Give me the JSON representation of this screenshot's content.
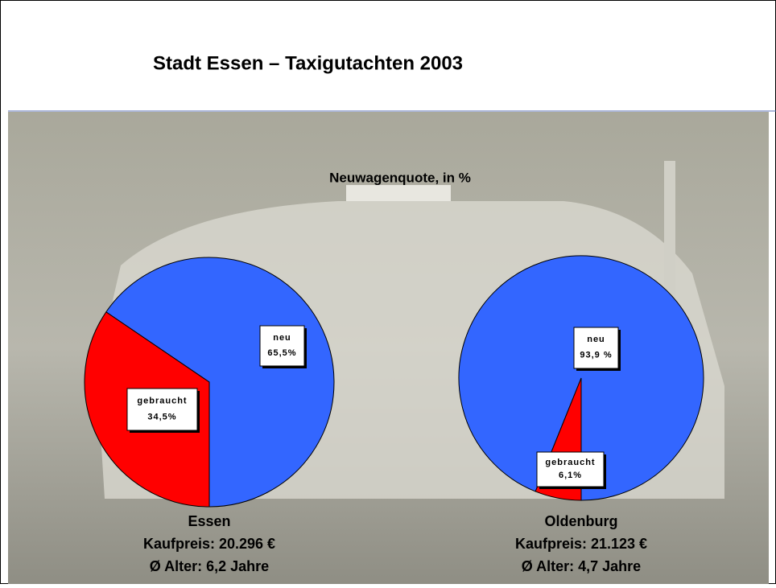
{
  "title": "Stadt Essen – Taxigutachten 2003",
  "subtitle": "Neuwagenquote, in %",
  "chart_data": [
    {
      "type": "pie",
      "title": "Essen",
      "notes": [
        "Kaufpreis: 20.296 €",
        "Ø Alter: 6,2 Jahre"
      ],
      "categories": [
        "neu",
        "gebraucht"
      ],
      "values": [
        65.5,
        34.5
      ],
      "value_labels": [
        "65,5%",
        "34,5%"
      ],
      "colors": [
        "#3366ff",
        "#ff0000"
      ]
    },
    {
      "type": "pie",
      "title": "Oldenburg",
      "notes": [
        "Kaufpreis: 21.123 €",
        "Ø Alter: 4,7 Jahre"
      ],
      "categories": [
        "neu",
        "gebraucht"
      ],
      "values": [
        93.9,
        6.1
      ],
      "value_labels": [
        "93,9 %",
        "6,1%"
      ],
      "colors": [
        "#3366ff",
        "#ff0000"
      ]
    }
  ]
}
